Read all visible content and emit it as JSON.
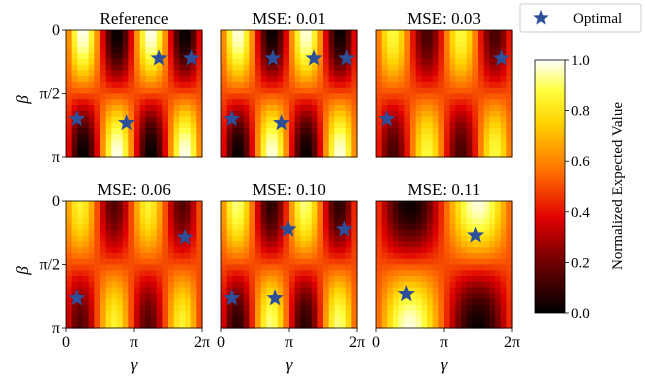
{
  "chart_data": {
    "type": "heatmap",
    "legend": {
      "marker": "star",
      "color": "#2d4f9a",
      "label": "Optimal",
      "position": "top-right"
    },
    "colorbar": {
      "label": "Normalized Expected Value",
      "colormap": "hot",
      "ticks": [
        "0.0",
        "0.2",
        "0.4",
        "0.6",
        "0.8",
        "1.0"
      ],
      "range": [
        0,
        1
      ]
    },
    "xaxis": {
      "label": "γ",
      "ticks": [
        "0",
        "π",
        "2π"
      ],
      "range": [
        0,
        6.283
      ]
    },
    "yaxis": {
      "label": "β",
      "ticks": [
        "0",
        "π/2",
        "π"
      ],
      "range": [
        0,
        3.1416
      ],
      "inverted": true
    },
    "panels": [
      {
        "title": "Reference",
        "pattern": {
          "kx": 2,
          "ky": 2,
          "phase": 0,
          "contrast": 1.0,
          "blur": 1
        },
        "optimal": [
          [
            4.3,
            0.7
          ],
          [
            5.8,
            0.7
          ],
          [
            0.5,
            2.2
          ],
          [
            2.8,
            2.3
          ]
        ]
      },
      {
        "title": "MSE: 0.01",
        "pattern": {
          "kx": 2,
          "ky": 2,
          "phase": 0,
          "contrast": 0.98,
          "blur": 1
        },
        "optimal": [
          [
            2.4,
            0.7
          ],
          [
            4.3,
            0.7
          ],
          [
            5.8,
            0.7
          ],
          [
            0.5,
            2.2
          ],
          [
            2.8,
            2.3
          ]
        ]
      },
      {
        "title": "MSE: 0.03",
        "pattern": {
          "kx": 2,
          "ky": 2,
          "phase": 0,
          "contrast": 0.75,
          "blur": 1
        },
        "optimal": [
          [
            5.8,
            0.7
          ],
          [
            0.5,
            2.2
          ]
        ]
      },
      {
        "title": "MSE: 0.06",
        "pattern": {
          "kx": 2,
          "ky": 2,
          "phase": 0.25,
          "contrast": 0.7,
          "blur": 1
        },
        "optimal": [
          [
            5.5,
            0.9
          ],
          [
            0.5,
            2.4
          ]
        ]
      },
      {
        "title": "MSE: 0.10",
        "pattern": {
          "kx": 2,
          "ky": 2,
          "phase": 0.1,
          "contrast": 0.85,
          "blur": 1
        },
        "optimal": [
          [
            3.1,
            0.7
          ],
          [
            5.7,
            0.7
          ],
          [
            0.5,
            2.4
          ],
          [
            2.5,
            2.4
          ]
        ]
      },
      {
        "title": "MSE: 0.11",
        "pattern": {
          "kx": 1,
          "ky": 2,
          "phase": 0,
          "contrast": 1.0,
          "blur": 0
        },
        "optimal": [
          [
            4.6,
            0.85
          ],
          [
            1.4,
            2.3
          ]
        ]
      }
    ]
  }
}
